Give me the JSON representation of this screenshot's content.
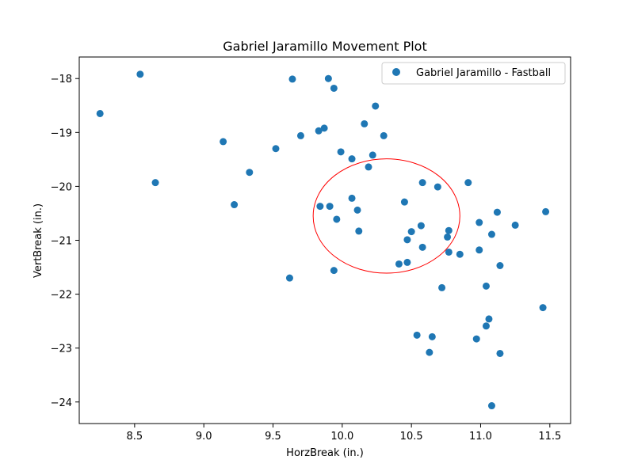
{
  "chart_data": {
    "type": "scatter",
    "title": "Gabriel Jaramillo Movement Plot",
    "xlabel": "HorzBreak (in.)",
    "ylabel": "VertBreak (in.)",
    "xlim": [
      8.1,
      11.65
    ],
    "ylim": [
      -24.4,
      -17.6
    ],
    "y_inverted": true,
    "xticks": [
      8.5,
      9.0,
      9.5,
      10.0,
      10.5,
      11.0,
      11.5
    ],
    "xtick_labels": [
      "8.5",
      "9.0",
      "9.5",
      "10.0",
      "10.5",
      "11.0",
      "11.5"
    ],
    "yticks": [
      -18,
      -19,
      -20,
      -21,
      -22,
      -23,
      -24
    ],
    "ytick_labels": [
      "−18",
      "−19",
      "−20",
      "−21",
      "−22",
      "−23",
      "−24"
    ],
    "grid": false,
    "legend_position": "top-right",
    "series": [
      {
        "name": "Gabriel Jaramillo - Fastball",
        "color": "#1f77b4",
        "points": [
          [
            8.25,
            -18.65
          ],
          [
            8.54,
            -17.92
          ],
          [
            8.65,
            -19.93
          ],
          [
            9.14,
            -19.17
          ],
          [
            9.22,
            -20.34
          ],
          [
            9.33,
            -19.74
          ],
          [
            9.52,
            -19.3
          ],
          [
            9.62,
            -21.7
          ],
          [
            9.64,
            -18.01
          ],
          [
            9.7,
            -19.06
          ],
          [
            9.83,
            -18.97
          ],
          [
            9.84,
            -20.37
          ],
          [
            9.87,
            -18.92
          ],
          [
            9.9,
            -18.0
          ],
          [
            9.91,
            -20.37
          ],
          [
            9.94,
            -18.18
          ],
          [
            9.94,
            -21.56
          ],
          [
            9.96,
            -20.61
          ],
          [
            9.99,
            -19.36
          ],
          [
            10.07,
            -20.22
          ],
          [
            10.07,
            -19.49
          ],
          [
            10.11,
            -20.44
          ],
          [
            10.12,
            -20.83
          ],
          [
            10.16,
            -18.84
          ],
          [
            10.19,
            -19.64
          ],
          [
            10.22,
            -19.42
          ],
          [
            10.24,
            -18.51
          ],
          [
            10.3,
            -19.06
          ],
          [
            10.41,
            -21.44
          ],
          [
            10.45,
            -20.29
          ],
          [
            10.47,
            -21.41
          ],
          [
            10.47,
            -20.99
          ],
          [
            10.5,
            -20.84
          ],
          [
            10.54,
            -22.76
          ],
          [
            10.57,
            -20.73
          ],
          [
            10.58,
            -19.93
          ],
          [
            10.58,
            -21.13
          ],
          [
            10.63,
            -23.08
          ],
          [
            10.65,
            -22.79
          ],
          [
            10.69,
            -20.01
          ],
          [
            10.72,
            -21.88
          ],
          [
            10.76,
            -20.94
          ],
          [
            10.77,
            -21.22
          ],
          [
            10.77,
            -20.82
          ],
          [
            10.85,
            -21.26
          ],
          [
            10.91,
            -19.93
          ],
          [
            10.97,
            -22.83
          ],
          [
            10.99,
            -21.18
          ],
          [
            10.99,
            -20.67
          ],
          [
            11.04,
            -22.59
          ],
          [
            11.04,
            -21.85
          ],
          [
            11.06,
            -22.46
          ],
          [
            11.08,
            -20.89
          ],
          [
            11.08,
            -24.07
          ],
          [
            11.12,
            -20.48
          ],
          [
            11.14,
            -21.47
          ],
          [
            11.14,
            -23.1
          ],
          [
            11.25,
            -20.72
          ],
          [
            11.45,
            -22.25
          ],
          [
            11.47,
            -20.47
          ]
        ]
      }
    ],
    "annotations": [
      {
        "type": "ellipse",
        "center": [
          10.32,
          -20.55
        ],
        "semi_axis_x": 0.53,
        "semi_axis_y": 1.06,
        "color": "#ff0000"
      }
    ]
  }
}
